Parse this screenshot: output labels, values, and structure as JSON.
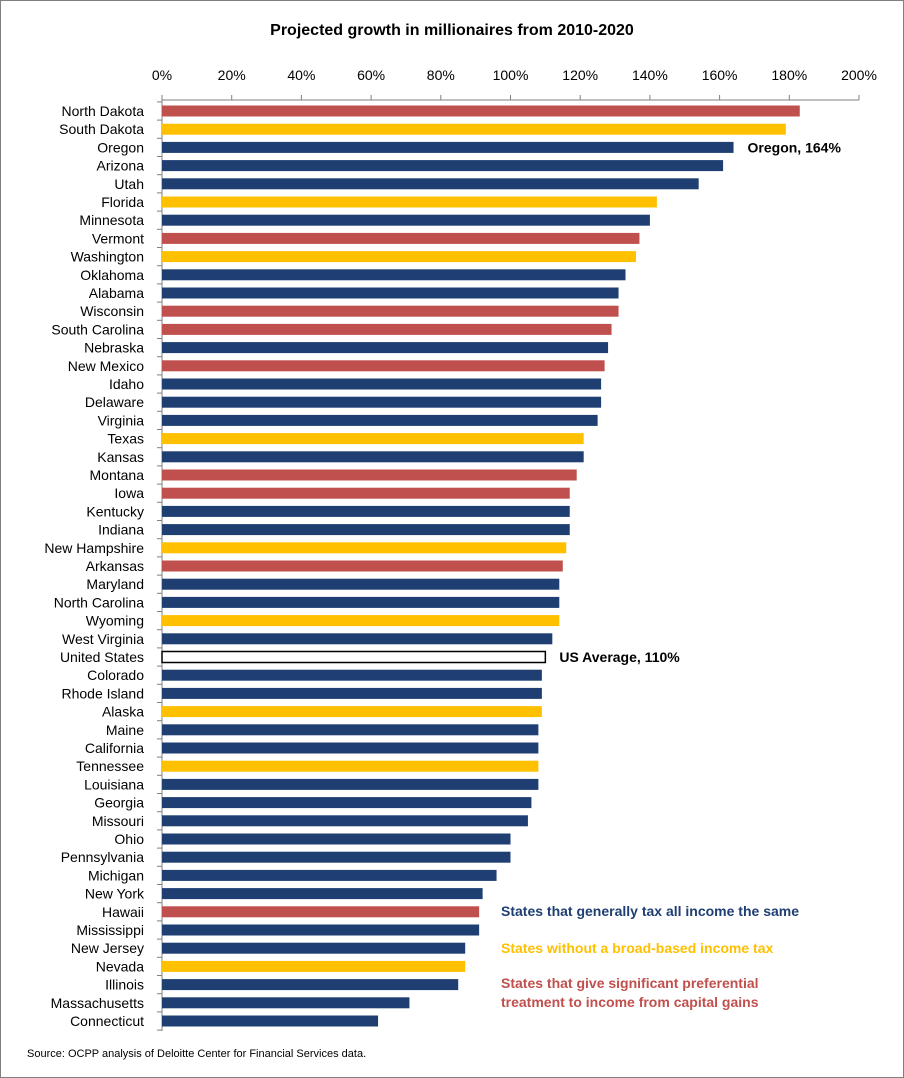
{
  "chart_data": {
    "type": "bar",
    "orientation": "horizontal",
    "title": "Projected growth in millionaires from 2010-2020",
    "xlim": [
      0,
      200
    ],
    "x_ticks": [
      "0%",
      "20%",
      "40%",
      "60%",
      "80%",
      "100%",
      "120%",
      "140%",
      "160%",
      "180%",
      "200%"
    ],
    "x_tick_values": [
      0,
      20,
      40,
      60,
      80,
      100,
      120,
      140,
      160,
      180,
      200
    ],
    "grid": false,
    "legend_placement": "bottom-right",
    "colors": {
      "same": "#1f3f73",
      "no_tax": "#ffc000",
      "preferential": "#c0504d",
      "average": "#ffffff"
    },
    "categories": [
      "North Dakota",
      "South Dakota",
      "Oregon",
      "Arizona",
      "Utah",
      "Florida",
      "Minnesota",
      "Vermont",
      "Washington",
      "Oklahoma",
      "Alabama",
      "Wisconsin",
      "South Carolina",
      "Nebraska",
      "New Mexico",
      "Idaho",
      "Delaware",
      "Virginia",
      "Texas",
      "Kansas",
      "Montana",
      "Iowa",
      "Kentucky",
      "Indiana",
      "New Hampshire",
      "Arkansas",
      "Maryland",
      "North Carolina",
      "Wyoming",
      "West Virginia",
      "United States",
      "Colorado",
      "Rhode Island",
      "Alaska",
      "Maine",
      "California",
      "Tennessee",
      "Louisiana",
      "Georgia",
      "Missouri",
      "Ohio",
      "Pennsylvania",
      "Michigan",
      "New York",
      "Hawaii",
      "Mississippi",
      "New Jersey",
      "Nevada",
      "Illinois",
      "Massachusetts",
      "Connecticut"
    ],
    "values": [
      183,
      179,
      164,
      161,
      154,
      142,
      140,
      137,
      136,
      133,
      131,
      131,
      129,
      128,
      127,
      126,
      126,
      125,
      121,
      121,
      119,
      117,
      117,
      117,
      116,
      115,
      114,
      114,
      114,
      112,
      110,
      109,
      109,
      109,
      108,
      108,
      108,
      108,
      106,
      105,
      100,
      100,
      96,
      92,
      91,
      91,
      87,
      87,
      85,
      71,
      62
    ],
    "groups": [
      "preferential",
      "no_tax",
      "same",
      "same",
      "same",
      "no_tax",
      "same",
      "preferential",
      "no_tax",
      "same",
      "same",
      "preferential",
      "preferential",
      "same",
      "preferential",
      "same",
      "same",
      "same",
      "no_tax",
      "same",
      "preferential",
      "preferential",
      "same",
      "same",
      "no_tax",
      "preferential",
      "same",
      "same",
      "no_tax",
      "same",
      "average",
      "same",
      "same",
      "no_tax",
      "same",
      "same",
      "no_tax",
      "same",
      "same",
      "same",
      "same",
      "same",
      "same",
      "same",
      "preferential",
      "same",
      "same",
      "no_tax",
      "same",
      "same",
      "same"
    ],
    "annotations": [
      {
        "text": "Oregon, 164%",
        "category": "Oregon"
      },
      {
        "text": "US Average, 110%",
        "category": "United States"
      }
    ],
    "legend": [
      {
        "group": "same",
        "text_lines": [
          "States that generally tax all income the same"
        ]
      },
      {
        "group": "no_tax",
        "text_lines": [
          "States without a broad-based income tax"
        ]
      },
      {
        "group": "preferential",
        "text_lines": [
          "States that give significant preferential",
          "treatment to income from capital gains"
        ]
      }
    ],
    "source": "Source: OCPP analysis of Deloitte Center for Financial Services data."
  }
}
